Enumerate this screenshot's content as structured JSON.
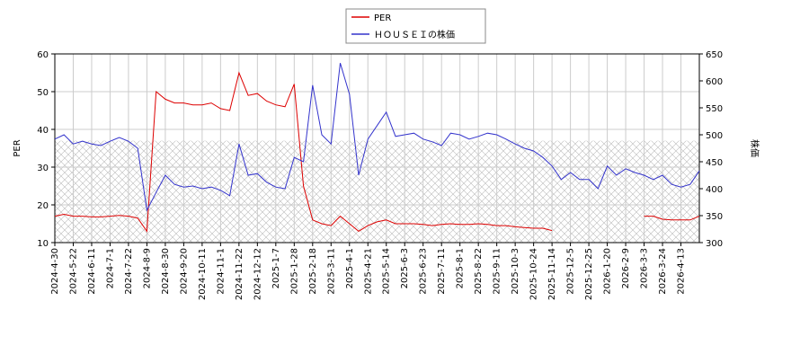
{
  "chart_data": {
    "type": "line",
    "categories": [
      "2024-4-30",
      null,
      "2024-5-22",
      null,
      "2024-6-11",
      null,
      "2024-7-1",
      null,
      "2024-7-22",
      null,
      "2024-8-9",
      null,
      "2024-8-30",
      null,
      "2024-9-20",
      null,
      "2024-10-11",
      null,
      "2024-11-1",
      null,
      "2024-11-22",
      null,
      "2024-12-12",
      null,
      "2025-1-7",
      null,
      "2025-1-28",
      null,
      "2025-2-18",
      null,
      "2025-3-11",
      null,
      "2025-4-1",
      null,
      "2025-4-21",
      null,
      "2025-5-14",
      null,
      "2025-6-3",
      null,
      "2025-6-23",
      null,
      "2025-7-11",
      null,
      "2025-8-1",
      null,
      "2025-8-22",
      null,
      "2025-9-11",
      null,
      "2025-10-3",
      null,
      "2025-10-24",
      null,
      "2025-11-14",
      null,
      "2025-12-5",
      null,
      "2025-12-25",
      null,
      "2026-1-20",
      null,
      "2026-2-9",
      null,
      "2026-3-3",
      null,
      "2026-3-24",
      null,
      "2026-4-13",
      null,
      null
    ],
    "series": [
      {
        "name": "PER",
        "color": "#dd0000",
        "axis": "y",
        "values": [
          17,
          17.5,
          17,
          17,
          16.8,
          16.8,
          17,
          17.2,
          17,
          16.5,
          13,
          50,
          48,
          47,
          47,
          46.5,
          46.5,
          47,
          45.5,
          45,
          55,
          49,
          49.5,
          47.5,
          46.5,
          46,
          52,
          25,
          16,
          15,
          14.5,
          17,
          15,
          13,
          14.5,
          15.5,
          16,
          15,
          15,
          15,
          14.8,
          14.5,
          14.8,
          15,
          14.8,
          14.8,
          15,
          14.8,
          14.5,
          14.5,
          14.2,
          14,
          13.8,
          13.8,
          13.2,
          null,
          null,
          null,
          null,
          null,
          null,
          null,
          null,
          null,
          17,
          17,
          16.2,
          16,
          16,
          16,
          17
        ]
      },
      {
        "name": "ＨＯＵＳＥＩの株価",
        "color": "#3333cc",
        "axis": "y2",
        "values": [
          492,
          500,
          483,
          488,
          483,
          480,
          488,
          495,
          488,
          475,
          360,
          393,
          425,
          408,
          403,
          405,
          400,
          403,
          397,
          387,
          483,
          425,
          428,
          412,
          403,
          400,
          458,
          450,
          592,
          500,
          483,
          633,
          575,
          425,
          492,
          517,
          542,
          497,
          500,
          503,
          492,
          487,
          480,
          503,
          500,
          492,
          497,
          503,
          500,
          492,
          483,
          475,
          470,
          458,
          442,
          417,
          430,
          417,
          417,
          400,
          442,
          425,
          437,
          430,
          425,
          417,
          425,
          408,
          403,
          408,
          433
        ]
      }
    ],
    "ylabel": "PER",
    "y2label": "株価",
    "ylim": [
      10,
      60
    ],
    "yticks": [
      10,
      20,
      30,
      40,
      50,
      60
    ],
    "y2lim": [
      300,
      650
    ],
    "y2ticks": [
      300,
      350,
      400,
      450,
      500,
      550,
      600,
      650
    ],
    "shaded_range": [
      10,
      37
    ],
    "grid": true,
    "legend": "top"
  }
}
